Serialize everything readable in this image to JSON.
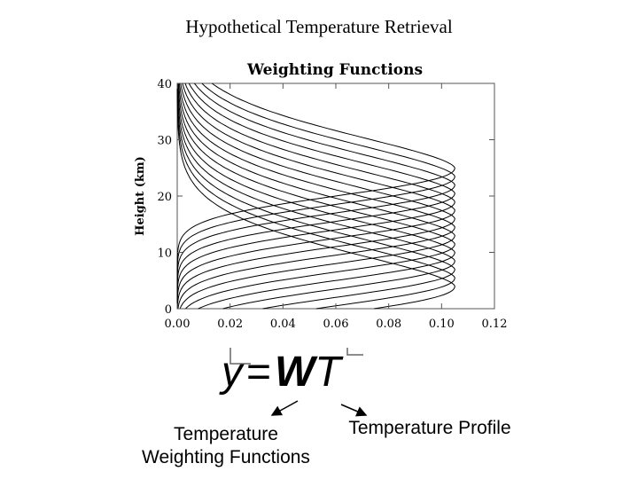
{
  "slide": {
    "title": "Hypothetical Temperature Retrieval"
  },
  "chart_data": {
    "type": "line",
    "title": "Weighting Functions",
    "xlabel": "",
    "ylabel": "Height (km)",
    "xlim": [
      0,
      0.12
    ],
    "ylim": [
      0,
      40
    ],
    "x_ticks": [
      "0.00",
      "0.02",
      "0.04",
      "0.06",
      "0.08",
      "0.10",
      "0.12"
    ],
    "y_ticks": [
      "0",
      "10",
      "20",
      "30",
      "40"
    ],
    "series_shape": "Gaussian-like weighting function in height, peak value about 0.105",
    "peak_value": 0.105,
    "peak_heights_km": [
      4,
      5.5,
      7,
      8.5,
      10,
      11.5,
      13,
      14.5,
      16,
      17.5,
      19,
      20.5,
      22,
      23.5,
      25
    ],
    "grid": false,
    "legend": "none",
    "line_color": "#000000"
  },
  "equation": {
    "y": "y",
    "equals": "=",
    "W": "W",
    "T": "T"
  },
  "annotations": {
    "left_line1": "Temperature",
    "left_line2": "Weighting Functions",
    "right": "Temperature Profile"
  }
}
